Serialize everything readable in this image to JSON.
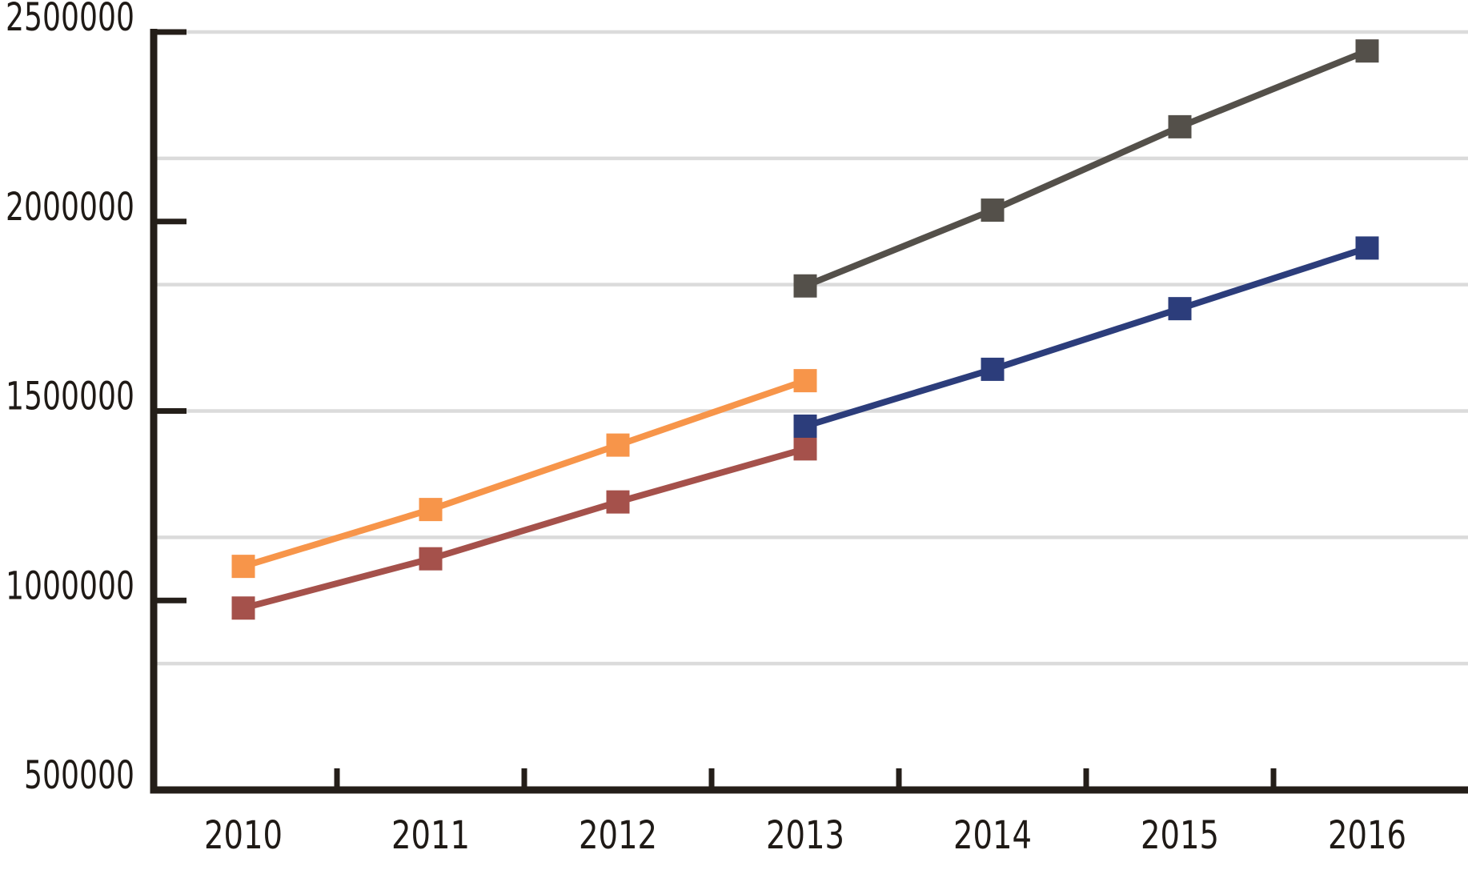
{
  "chart_data": {
    "type": "line",
    "title": "",
    "marker": "square",
    "grid": "horizontal",
    "legend_position": "none",
    "x_tick_labels": [
      "2010",
      "2011",
      "2012",
      "2013",
      "2014",
      "2015",
      "2016"
    ],
    "y_tick_labels": [
      "2500000",
      "2000000",
      "1500000",
      "1000000",
      "500000"
    ],
    "y_tick_values": [
      2500000,
      2000000,
      1500000,
      1000000,
      500000
    ],
    "ylim": [
      500000,
      2500000
    ],
    "x_years": [
      2010,
      2011,
      2012,
      2013,
      2014,
      2015,
      2016
    ],
    "gridline_values": [
      2500000,
      2166667,
      1833333,
      1500000,
      1166667,
      833333
    ],
    "series": [
      {
        "name": "orange-series",
        "color": "#F7954A",
        "years": [
          2010,
          2011,
          2012,
          2013
        ],
        "values": [
          1090000,
          1240000,
          1410000,
          1580000
        ]
      },
      {
        "name": "dark-red-series",
        "color": "#A5514B",
        "years": [
          2010,
          2011,
          2012,
          2013
        ],
        "values": [
          980000,
          1110000,
          1260000,
          1400000
        ]
      },
      {
        "name": "dark-gray-series",
        "color": "#54504A",
        "years": [
          2013,
          2014,
          2015,
          2016
        ],
        "values": [
          1830000,
          2030000,
          2250000,
          2450000
        ]
      },
      {
        "name": "navy-series",
        "color": "#2C3D7B",
        "years": [
          2013,
          2014,
          2015,
          2016
        ],
        "values": [
          1460000,
          1610000,
          1770000,
          1930000
        ]
      }
    ],
    "colors": {
      "axis": "#241e19",
      "tick_text": "#1f1a16",
      "gridline": "#dbdbdb",
      "background": "#ffffff"
    }
  }
}
